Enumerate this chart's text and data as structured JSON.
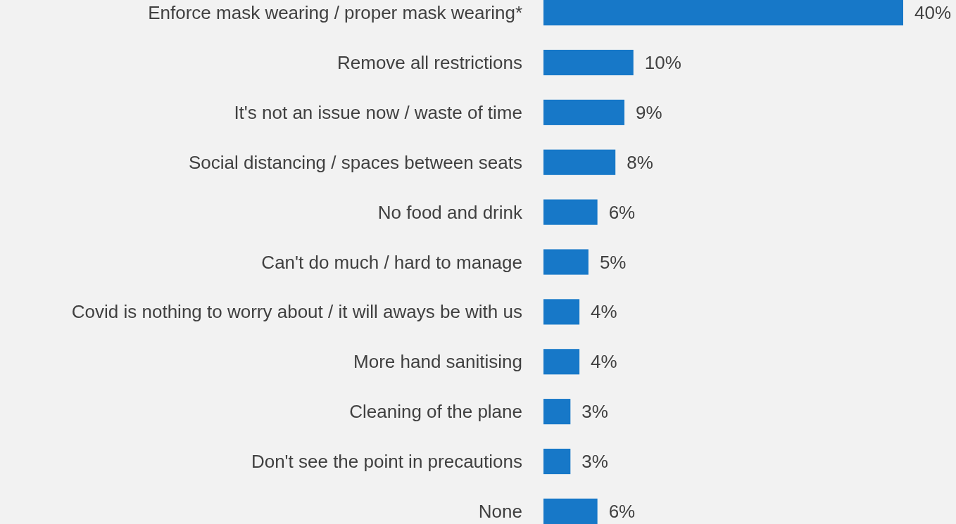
{
  "chart_data": {
    "type": "bar",
    "orientation": "horizontal",
    "categories": [
      "Enforce mask wearing / proper mask wearing*",
      "Remove all restrictions",
      "It's not an issue now / waste of time",
      "Social distancing / spaces between seats",
      "No food and drink",
      "Can't do much / hard to manage",
      "Covid is nothing to worry about / it will aways be with us",
      "More hand sanitising",
      "Cleaning of the plane",
      "Don't see the point in precautions",
      "None"
    ],
    "values": [
      40,
      10,
      9,
      8,
      6,
      5,
      4,
      4,
      3,
      3,
      6
    ],
    "value_labels": [
      "40%",
      "10%",
      "9%",
      "8%",
      "6%",
      "5%",
      "4%",
      "4%",
      "3%",
      "3%",
      "6%"
    ],
    "color": "#1778c8"
  }
}
